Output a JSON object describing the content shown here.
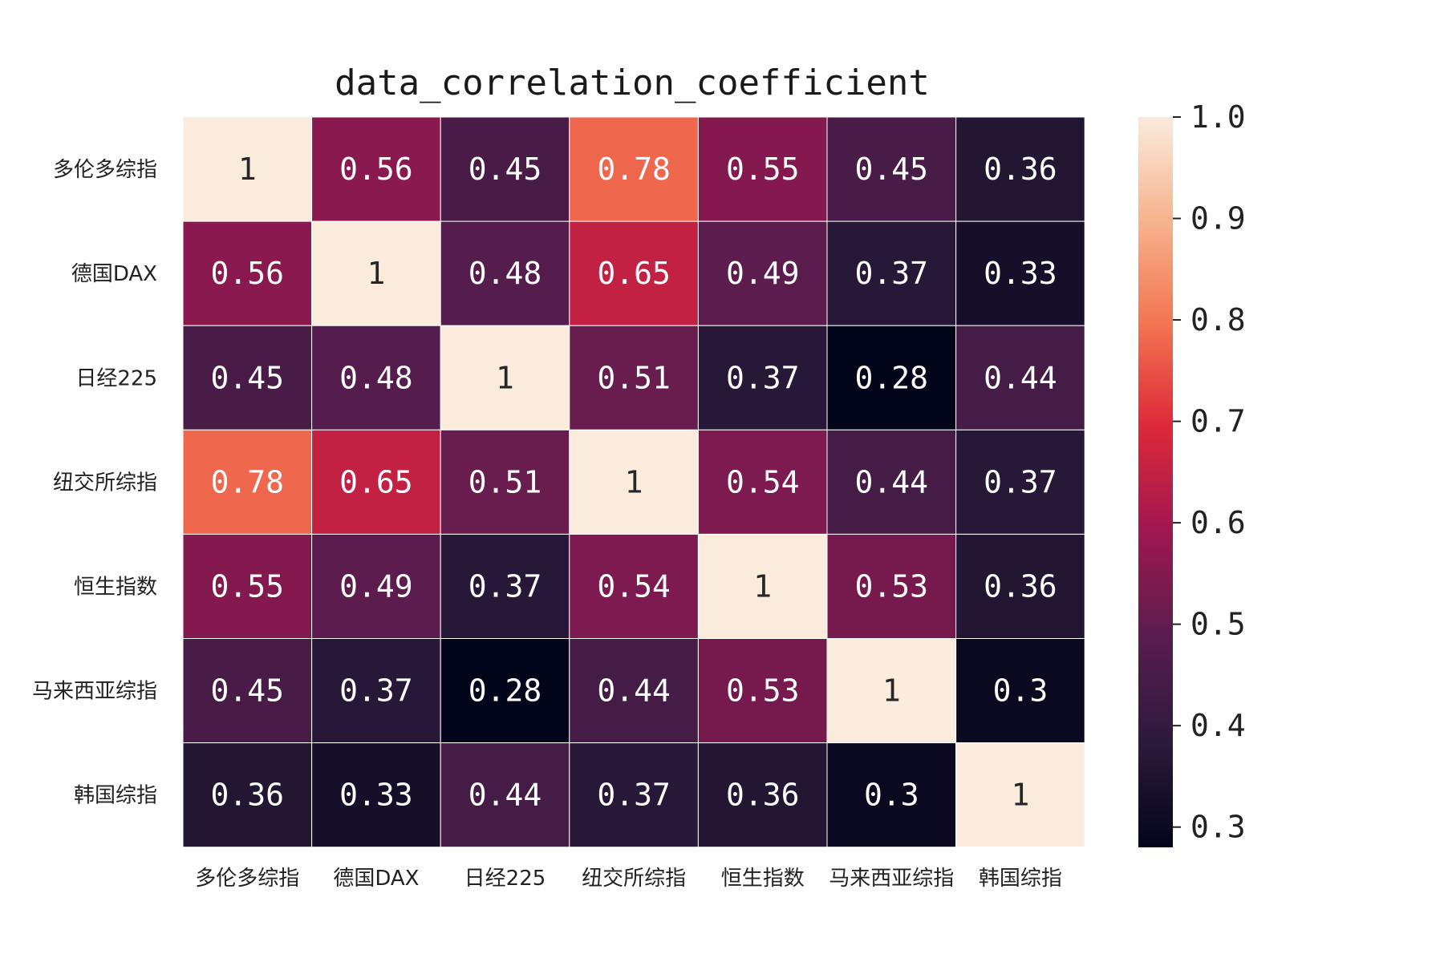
{
  "chart_data": {
    "type": "heatmap",
    "title": "data_correlation_coefficient",
    "xlabel": "",
    "ylabel": "",
    "row_labels": [
      "多伦多综指",
      "德国DAX",
      "日经225",
      "纽交所综指",
      "恒生指数",
      "马来西亚综指",
      "韩国综指"
    ],
    "col_labels": [
      "多伦多综指",
      "德国DAX",
      "日经225",
      "纽交所综指",
      "恒生指数",
      "马来西亚综指",
      "韩国综指"
    ],
    "values": [
      [
        1,
        0.56,
        0.45,
        0.78,
        0.55,
        0.45,
        0.36
      ],
      [
        0.56,
        1,
        0.48,
        0.65,
        0.49,
        0.37,
        0.33
      ],
      [
        0.45,
        0.48,
        1,
        0.51,
        0.37,
        0.28,
        0.44
      ],
      [
        0.78,
        0.65,
        0.51,
        1,
        0.54,
        0.44,
        0.37
      ],
      [
        0.55,
        0.49,
        0.37,
        0.54,
        1,
        0.53,
        0.36
      ],
      [
        0.45,
        0.37,
        0.28,
        0.44,
        0.53,
        1,
        0.3
      ],
      [
        0.36,
        0.33,
        0.44,
        0.37,
        0.36,
        0.3,
        1
      ]
    ],
    "annotations": [
      [
        "1",
        "0.56",
        "0.45",
        "0.78",
        "0.55",
        "0.45",
        "0.36"
      ],
      [
        "0.56",
        "1",
        "0.48",
        "0.65",
        "0.49",
        "0.37",
        "0.33"
      ],
      [
        "0.45",
        "0.48",
        "1",
        "0.51",
        "0.37",
        "0.28",
        "0.44"
      ],
      [
        "0.78",
        "0.65",
        "0.51",
        "1",
        "0.54",
        "0.44",
        "0.37"
      ],
      [
        "0.55",
        "0.49",
        "0.37",
        "0.54",
        "1",
        "0.53",
        "0.36"
      ],
      [
        "0.45",
        "0.37",
        "0.28",
        "0.44",
        "0.53",
        "1",
        "0.3"
      ],
      [
        "0.36",
        "0.33",
        "0.44",
        "0.37",
        "0.36",
        "0.3",
        "1"
      ]
    ],
    "colormap": "rocket",
    "colorbar": {
      "range": [
        0.28,
        1.0
      ],
      "ticks": [
        1.0,
        0.9,
        0.8,
        0.7,
        0.6,
        0.5,
        0.4,
        0.3
      ],
      "tick_labels": [
        "1.0",
        "0.9",
        "0.8",
        "0.7",
        "0.6",
        "0.5",
        "0.4",
        "0.3"
      ]
    },
    "grid": false,
    "cell_border_color": "#ffffff"
  }
}
